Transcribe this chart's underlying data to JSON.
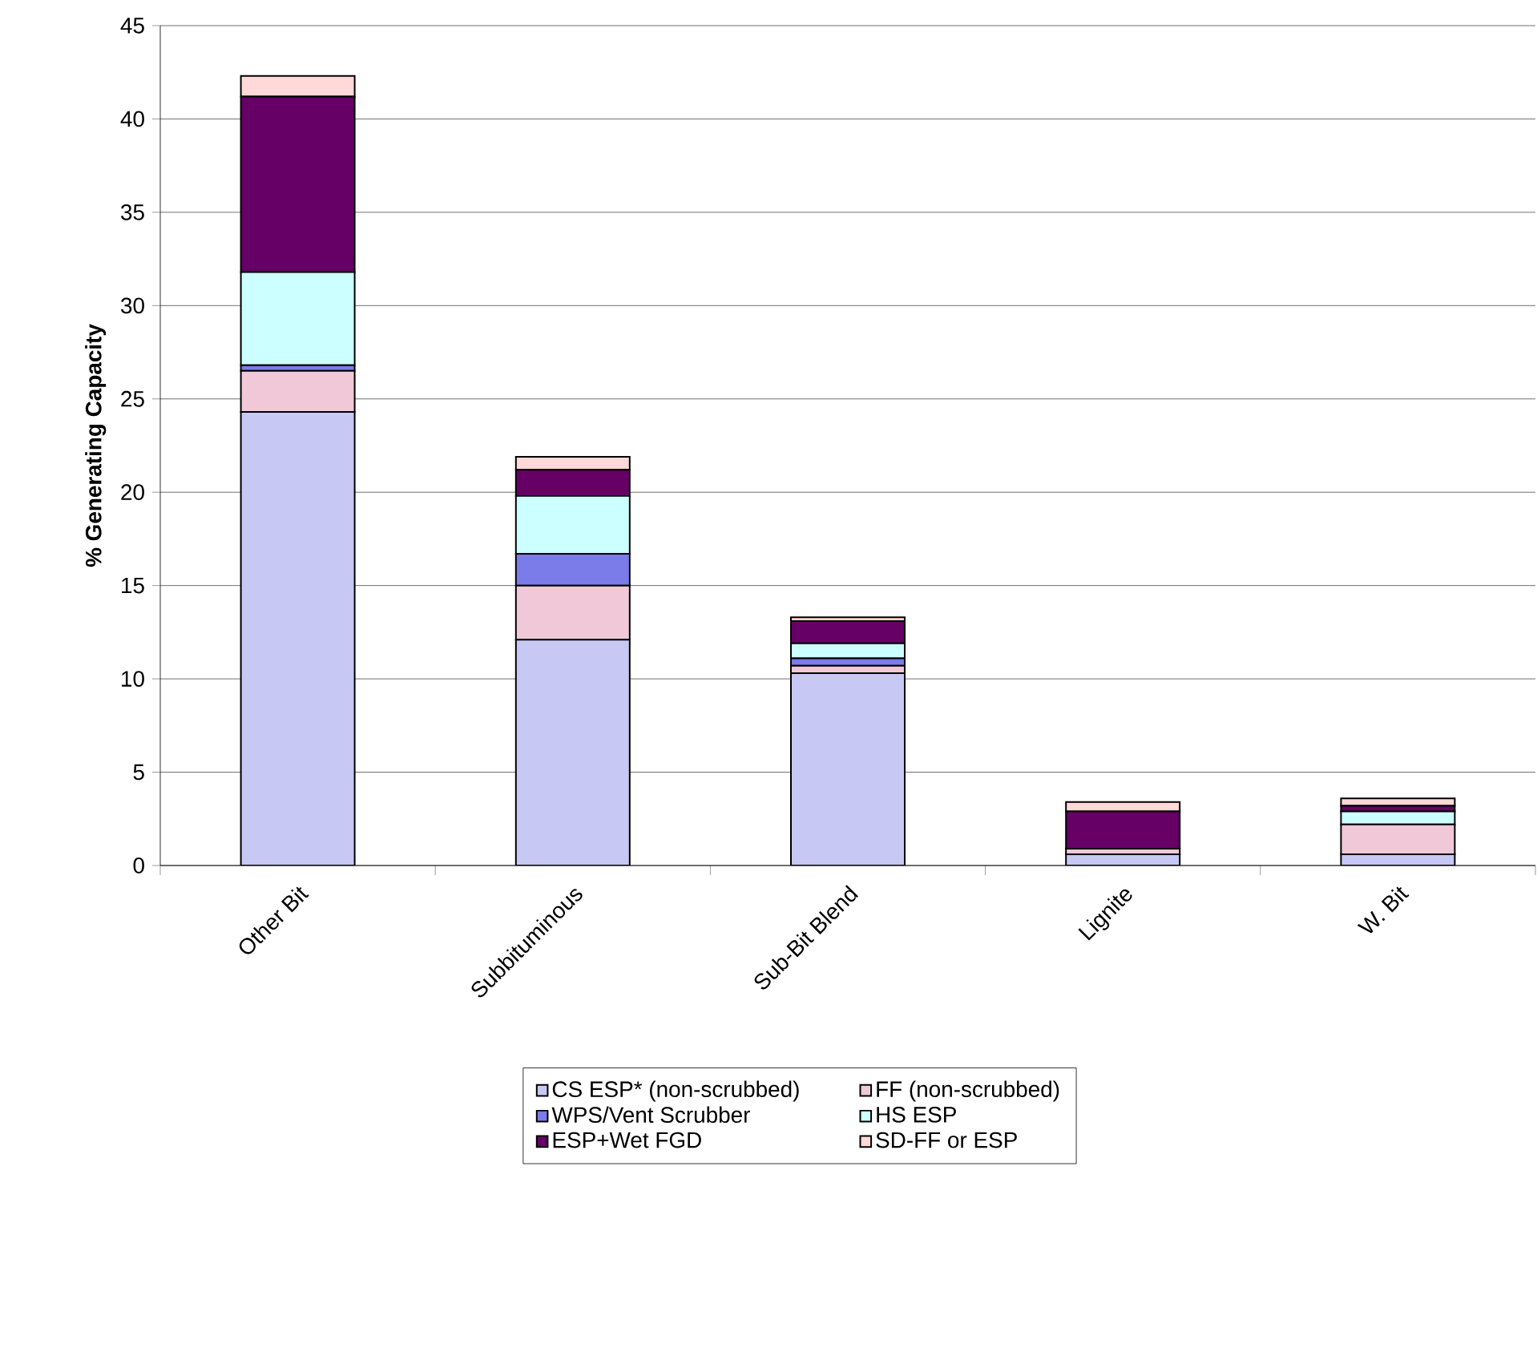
{
  "chart_data": {
    "type": "bar",
    "stacked": true,
    "ylabel": "% Generating Capacity",
    "categories": [
      "Other Bit",
      "Subbituminous",
      "Sub-Bit Blend",
      "Lignite",
      "W. Bit"
    ],
    "series": [
      {
        "name": "CS ESP* (non-scrubbed)",
        "color": "#c8c8f5",
        "values": [
          24.3,
          12.1,
          10.3,
          0.6,
          0.6
        ]
      },
      {
        "name": "FF (non-scrubbed)",
        "color": "#f0c8d8",
        "values": [
          2.2,
          2.9,
          0.4,
          0.3,
          1.6
        ]
      },
      {
        "name": "WPS/Vent Scrubber",
        "color": "#7b7bea",
        "values": [
          0.3,
          1.7,
          0.4,
          0,
          null
        ]
      },
      {
        "name": "HS ESP",
        "color": "#ccffff",
        "values": [
          5.0,
          3.1,
          0.8,
          0,
          0.7
        ]
      },
      {
        "name": "ESP+Wet FGD",
        "color": "#660066",
        "values": [
          9.4,
          1.4,
          1.2,
          2.0,
          0.3
        ]
      },
      {
        "name": "SD-FF or ESP",
        "color": "#ffd8d8",
        "values": [
          1.1,
          0.7,
          0.2,
          0.5,
          0.4
        ]
      }
    ],
    "ylim": [
      0,
      45
    ],
    "yticks": [
      0,
      5,
      10,
      15,
      20,
      25,
      30,
      35,
      40,
      45
    ],
    "grid": "y",
    "legend": "bottom"
  }
}
